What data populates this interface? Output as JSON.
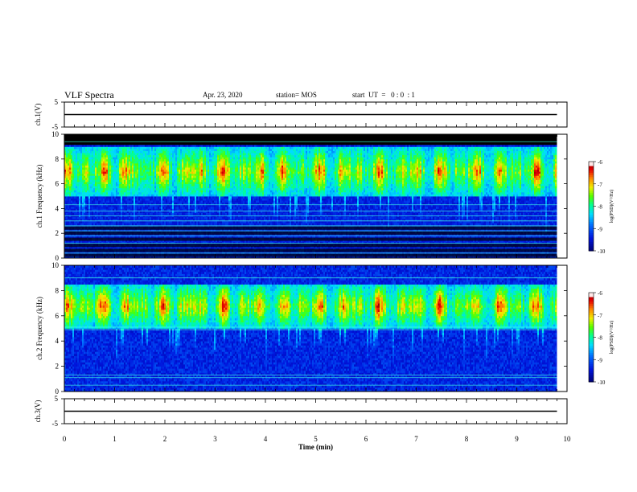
{
  "header": {
    "title": "VLF Spectra",
    "date": "Apr. 23, 2020",
    "station": "station= MOS",
    "start_ut": "start  UT  =   0 : 0  : 1"
  },
  "colorbar": {
    "label": "log(PSD)(V²/Hz)",
    "ticks": [
      "-6",
      "-7",
      "-8",
      "-9",
      "-10"
    ],
    "colors": [
      "#000080",
      "#0000ff",
      "#00a0ff",
      "#00ffff",
      "#00ff80",
      "#40ff00",
      "#ffff00",
      "#ff8000",
      "#ff0000",
      "#c00000",
      "#ffe0e0"
    ]
  },
  "chart_data": [
    {
      "type": "line",
      "panel": "ch1-waveform",
      "ylabel": "ch.1(V)",
      "ylim": [
        -5,
        5
      ],
      "yticks": [
        "5",
        "-5"
      ],
      "series": [
        {
          "x": [
            0,
            9.8
          ],
          "y": [
            0,
            0
          ]
        }
      ]
    },
    {
      "type": "heatmap",
      "panel": "ch1-spectrogram",
      "ylabel": "ch.1  Frequency  (kHz)",
      "ylim": [
        0,
        10
      ],
      "yticks": [
        "0",
        "2",
        "4",
        "6",
        "8",
        "10"
      ],
      "xlim": [
        0,
        9.8
      ],
      "emission_band_khz": [
        5,
        9
      ],
      "peak_khz": 7,
      "line_noise_khz": [
        0.4,
        1.2,
        1.8,
        2.2,
        2.6,
        3.0,
        3.4,
        3.8,
        4.3,
        9.4
      ],
      "clim": [
        -10,
        -6
      ]
    },
    {
      "type": "heatmap",
      "panel": "ch2-spectrogram",
      "ylabel": "ch.2  Frequency  (kHz)",
      "ylim": [
        0,
        10
      ],
      "yticks": [
        "0",
        "2",
        "4",
        "6",
        "8",
        "10"
      ],
      "xlim": [
        0,
        9.8
      ],
      "emission_band_khz": [
        5,
        8.5
      ],
      "peak_khz": 6.8,
      "line_noise_khz": [
        0.5,
        1.1,
        1.3,
        4.9,
        5.1,
        9.0
      ],
      "clim": [
        -10,
        -6
      ]
    },
    {
      "type": "line",
      "panel": "ch3-waveform",
      "ylabel": "ch.3(V)",
      "ylim": [
        -5,
        5
      ],
      "yticks": [
        "5",
        "-5"
      ],
      "xlabel": "Time  (min)",
      "xlim": [
        0,
        10
      ],
      "xticks": [
        "0",
        "1",
        "2",
        "3",
        "4",
        "5",
        "6",
        "7",
        "8",
        "9",
        "10"
      ],
      "series": [
        {
          "x": [
            0,
            9.8
          ],
          "y": [
            0,
            0
          ]
        }
      ]
    }
  ]
}
